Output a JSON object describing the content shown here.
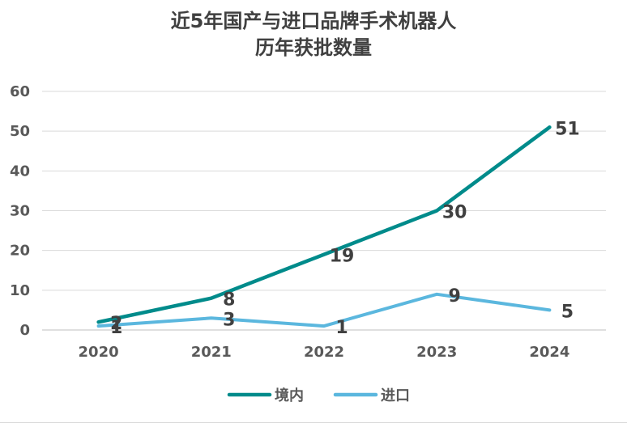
{
  "chart_data": {
    "type": "line",
    "title_line1": "近5年国产与进口品牌手术机器人",
    "title_line2": "历年获批数量",
    "categories": [
      "2020",
      "2021",
      "2022",
      "2023",
      "2024"
    ],
    "ylim": [
      0,
      60
    ],
    "yticks": [
      "0",
      "10",
      "20",
      "30",
      "40",
      "50",
      "60"
    ],
    "grid": true,
    "legend_position": "bottom",
    "series": [
      {
        "name": "境内",
        "values": [
          2,
          8,
          19,
          30,
          51
        ],
        "color": "#008B8B"
      },
      {
        "name": "进口",
        "values": [
          1,
          3,
          1,
          9,
          5
        ],
        "color": "#5BB7DE"
      }
    ]
  }
}
